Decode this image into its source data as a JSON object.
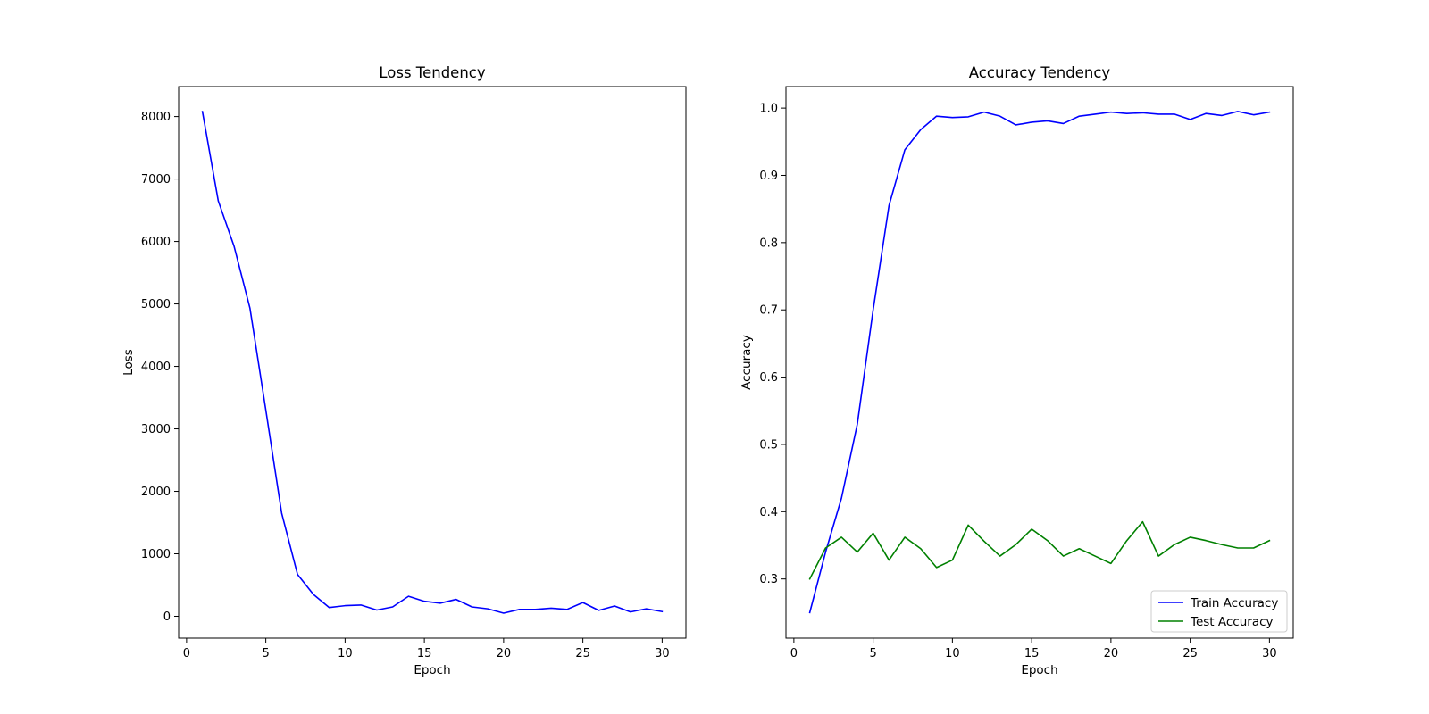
{
  "chart_data": [
    {
      "type": "line",
      "title": "Loss Tendency",
      "xlabel": "Epoch",
      "ylabel": "Loss",
      "xlim": [
        -0.5,
        31.5
      ],
      "ylim": [
        -350,
        8480
      ],
      "xticks": [
        0,
        5,
        10,
        15,
        20,
        25,
        30
      ],
      "yticks": [
        0,
        1000,
        2000,
        3000,
        4000,
        5000,
        6000,
        7000,
        8000
      ],
      "grid": false,
      "legend": null,
      "x": [
        1,
        2,
        3,
        4,
        5,
        6,
        7,
        8,
        9,
        10,
        11,
        12,
        13,
        14,
        15,
        16,
        17,
        18,
        19,
        20,
        21,
        22,
        23,
        24,
        25,
        26,
        27,
        28,
        29,
        30
      ],
      "series": [
        {
          "name": "",
          "color": "#0000ff",
          "values": [
            8080,
            6650,
            5920,
            4930,
            3300,
            1650,
            670,
            350,
            140,
            170,
            180,
            100,
            150,
            320,
            240,
            210,
            270,
            150,
            120,
            50,
            110,
            110,
            130,
            110,
            220,
            95,
            165,
            70,
            120,
            75
          ]
        }
      ]
    },
    {
      "type": "line",
      "title": "Accuracy Tendency",
      "xlabel": "Epoch",
      "ylabel": "Accuracy",
      "xlim": [
        -0.5,
        31.5
      ],
      "ylim": [
        0.212,
        1.032
      ],
      "xticks": [
        0,
        5,
        10,
        15,
        20,
        25,
        30
      ],
      "yticks": [
        0.3,
        0.4,
        0.5,
        0.6,
        0.7,
        0.8,
        0.9,
        1.0
      ],
      "grid": false,
      "legend": "lower-right",
      "x": [
        1,
        2,
        3,
        4,
        5,
        6,
        7,
        8,
        9,
        10,
        11,
        12,
        13,
        14,
        15,
        16,
        17,
        18,
        19,
        20,
        21,
        22,
        23,
        24,
        25,
        26,
        27,
        28,
        29,
        30
      ],
      "series": [
        {
          "name": "Train Accuracy",
          "color": "#0000ff",
          "values": [
            0.25,
            0.34,
            0.42,
            0.53,
            0.7,
            0.855,
            0.938,
            0.968,
            0.988,
            0.986,
            0.987,
            0.994,
            0.988,
            0.975,
            0.979,
            0.981,
            0.977,
            0.988,
            0.991,
            0.994,
            0.992,
            0.993,
            0.991,
            0.991,
            0.983,
            0.992,
            0.989,
            0.995,
            0.99,
            0.994
          ]
        },
        {
          "name": "Test Accuracy",
          "color": "#008000",
          "values": [
            0.3,
            0.346,
            0.362,
            0.34,
            0.368,
            0.328,
            0.362,
            0.345,
            0.317,
            0.328,
            0.38,
            0.356,
            0.334,
            0.351,
            0.374,
            0.357,
            0.334,
            0.345,
            0.334,
            0.323,
            0.357,
            0.385,
            0.334,
            0.351,
            0.362,
            0.357,
            0.351,
            0.346,
            0.346,
            0.357
          ]
        }
      ]
    }
  ]
}
